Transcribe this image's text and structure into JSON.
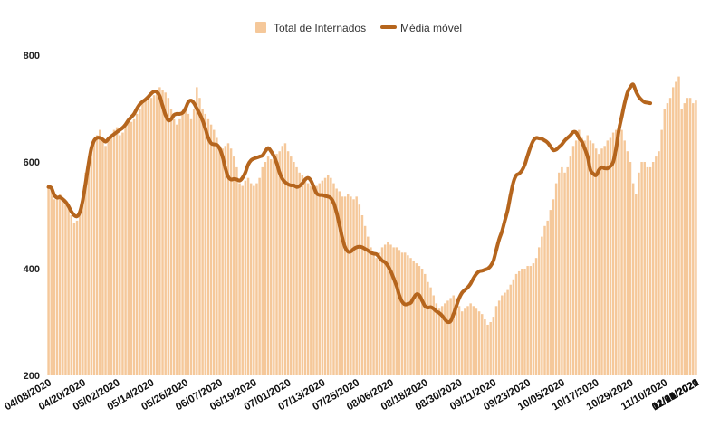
{
  "chart_data": {
    "type": "bar",
    "title": "",
    "xlabel": "",
    "ylabel": "",
    "ylim": [
      200,
      800
    ],
    "yticks": [
      200,
      400,
      600,
      800
    ],
    "grid": false,
    "legend_position": "top-center",
    "x_start": "2020-04-08",
    "x_end": "2021-01-27",
    "x_tick_labels": [
      "04/08/2020",
      "04/20/2020",
      "05/02/2020",
      "05/14/2020",
      "05/26/2020",
      "06/07/2020",
      "06/19/2020",
      "07/01/2020",
      "07/13/2020",
      "07/25/2020",
      "08/06/2020",
      "08/18/2020",
      "08/30/2020",
      "09/11/2020",
      "09/23/2020",
      "10/05/2020",
      "10/17/2020",
      "10/29/2020",
      "11/10/2020",
      "11/22/2020",
      "12/04/2020",
      "12/16/2020",
      "12/28/2020",
      "01/09/2021",
      "01/21/2021"
    ],
    "series": [
      {
        "name": "Total de Internados",
        "kind": "bar",
        "color": "#f5c89a",
        "values": [
          555,
          550,
          530,
          535,
          540,
          525,
          520,
          515,
          500,
          485,
          490,
          505,
          545,
          580,
          600,
          620,
          640,
          650,
          660,
          645,
          630,
          640,
          650,
          660,
          665,
          650,
          655,
          670,
          680,
          675,
          680,
          690,
          700,
          710,
          720,
          715,
          720,
          725,
          735,
          740,
          735,
          730,
          720,
          700,
          680,
          670,
          680,
          690,
          700,
          690,
          680,
          700,
          740,
          720,
          700,
          690,
          680,
          670,
          660,
          645,
          630,
          625,
          630,
          635,
          625,
          610,
          590,
          560,
          555,
          565,
          570,
          560,
          555,
          560,
          570,
          590,
          600,
          610,
          605,
          610,
          615,
          620,
          630,
          635,
          620,
          610,
          600,
          590,
          580,
          575,
          570,
          560,
          555,
          550,
          555,
          560,
          565,
          570,
          575,
          570,
          560,
          550,
          545,
          535,
          535,
          540,
          535,
          530,
          535,
          520,
          500,
          480,
          460,
          440,
          430,
          420,
          430,
          440,
          445,
          450,
          445,
          440,
          440,
          435,
          430,
          430,
          425,
          420,
          415,
          410,
          405,
          400,
          390,
          375,
          365,
          350,
          335,
          325,
          330,
          335,
          340,
          345,
          350,
          345,
          330,
          320,
          325,
          330,
          335,
          330,
          325,
          320,
          315,
          305,
          295,
          300,
          310,
          330,
          340,
          350,
          355,
          360,
          370,
          380,
          390,
          395,
          400,
          400,
          405,
          405,
          410,
          420,
          440,
          460,
          480,
          490,
          510,
          530,
          560,
          580,
          590,
          580,
          590,
          610,
          630,
          640,
          660,
          645,
          640,
          650,
          640,
          635,
          625,
          615,
          625,
          630,
          640,
          645,
          655,
          660,
          670,
          660,
          640,
          620,
          600,
          560,
          540,
          580,
          600,
          600,
          590,
          590,
          600,
          610,
          620,
          660,
          700,
          710,
          720,
          740,
          750,
          760,
          700,
          710,
          720,
          720,
          710,
          715
        ]
      },
      {
        "name": "Média móvel",
        "kind": "line",
        "color": "#b5651d",
        "values": [
          553,
          551,
          538,
          533,
          534,
          530,
          525,
          517,
          507,
          500,
          498,
          506,
          528,
          560,
          595,
          625,
          640,
          645,
          645,
          642,
          638,
          643,
          648,
          652,
          656,
          660,
          664,
          670,
          678,
          684,
          690,
          700,
          708,
          713,
          717,
          722,
          728,
          732,
          731,
          723,
          705,
          688,
          678,
          680,
          688,
          690,
          690,
          692,
          700,
          712,
          715,
          710,
          700,
          690,
          678,
          662,
          645,
          635,
          633,
          632,
          625,
          610,
          588,
          572,
          567,
          568,
          567,
          565,
          570,
          580,
          595,
          603,
          606,
          608,
          610,
          612,
          620,
          626,
          620,
          611,
          598,
          580,
          568,
          562,
          558,
          556,
          556,
          553,
          555,
          560,
          567,
          570,
          565,
          553,
          541,
          538,
          538,
          536,
          535,
          532,
          523,
          505,
          482,
          458,
          440,
          432,
          432,
          437,
          440,
          441,
          440,
          437,
          434,
          430,
          428,
          427,
          421,
          415,
          412,
          405,
          395,
          382,
          368,
          350,
          338,
          333,
          334,
          336,
          345,
          352,
          350,
          340,
          330,
          327,
          328,
          325,
          320,
          317,
          312,
          305,
          300,
          302,
          315,
          330,
          345,
          355,
          360,
          365,
          372,
          382,
          390,
          395,
          396,
          398,
          400,
          405,
          415,
          435,
          455,
          470,
          490,
          510,
          538,
          562,
          575,
          578,
          584,
          595,
          612,
          628,
          640,
          645,
          644,
          643,
          640,
          636,
          629,
          622,
          623,
          628,
          633,
          640,
          645,
          650,
          656,
          655,
          645,
          638,
          625,
          610,
          585,
          578,
          575,
          585,
          590,
          588,
          588,
          592,
          600,
          625,
          660,
          685,
          710,
          730,
          740,
          745,
          732,
          722,
          716,
          712,
          711,
          710
        ]
      }
    ]
  }
}
